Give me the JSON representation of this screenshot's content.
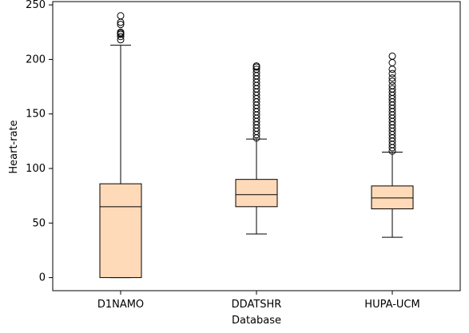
{
  "chart_data": {
    "type": "box",
    "title": "",
    "xlabel": "Database",
    "ylabel": "Heart-rate",
    "ylim": [
      -12,
      253
    ],
    "yticks": [
      0,
      50,
      100,
      150,
      200,
      250
    ],
    "ytick_labels": [
      "0",
      "50",
      "100",
      "150",
      "200",
      "250"
    ],
    "grid": false,
    "box_fill": "#ffdab9",
    "series": [
      {
        "category": "D1NAMO",
        "whisker_low": 0,
        "q1": 0,
        "median": 65,
        "q3": 86,
        "whisker_high": 213,
        "outliers": [
          218,
          221,
          223,
          224,
          225,
          232,
          234,
          240
        ]
      },
      {
        "category": "DDATSHR",
        "whisker_low": 40,
        "q1": 65,
        "median": 76,
        "q3": 90,
        "whisker_high": 127,
        "outliers": [
          128,
          131,
          134,
          137,
          140,
          143,
          146,
          149,
          152,
          155,
          158,
          161,
          164,
          167,
          170,
          173,
          176,
          179,
          182,
          185,
          188,
          191,
          193,
          194
        ]
      },
      {
        "category": "HUPA-UCM",
        "whisker_low": 37,
        "q1": 63,
        "median": 73,
        "q3": 84,
        "whisker_high": 115,
        "outliers": [
          116,
          119,
          122,
          125,
          128,
          131,
          134,
          137,
          140,
          143,
          146,
          149,
          152,
          155,
          158,
          161,
          164,
          167,
          170,
          173,
          176,
          180,
          183,
          187,
          191,
          197,
          203
        ]
      }
    ]
  }
}
